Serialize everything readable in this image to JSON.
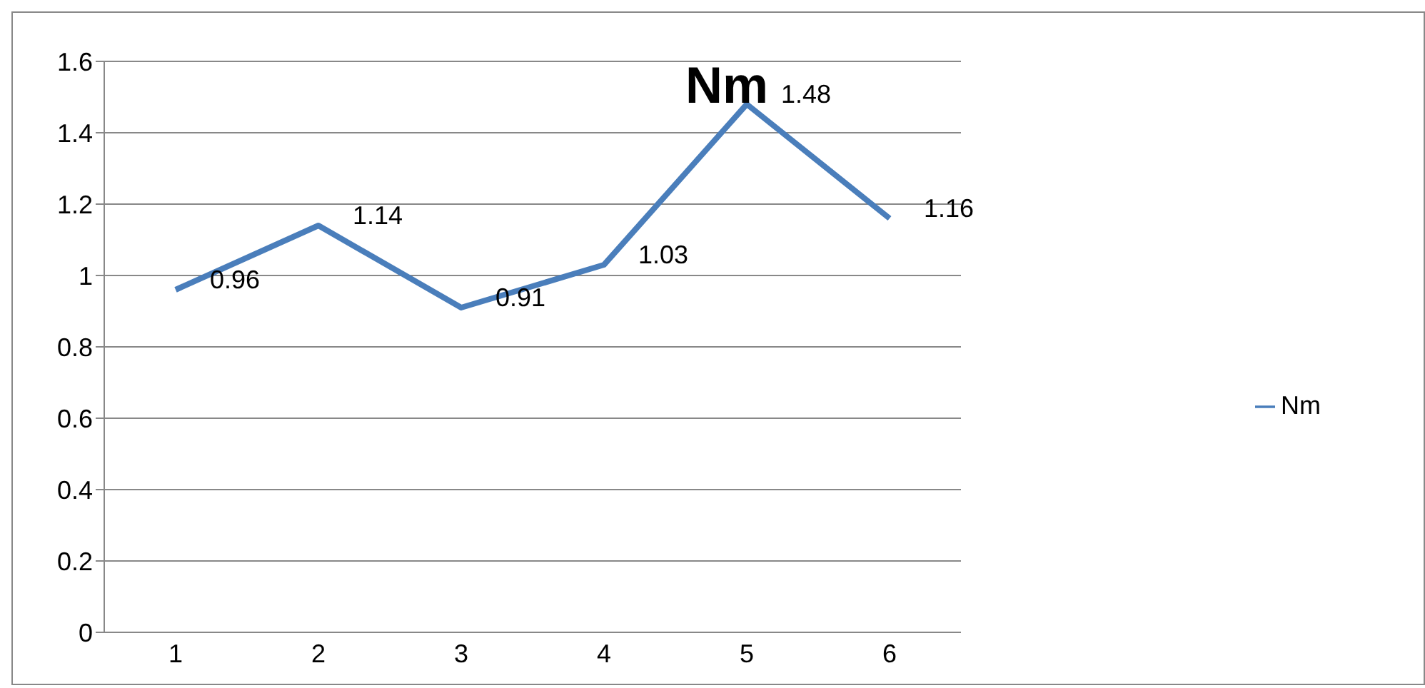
{
  "chart_data": {
    "type": "line",
    "title": "Nm",
    "categories": [
      "1",
      "2",
      "3",
      "4",
      "5",
      "6"
    ],
    "series": [
      {
        "name": "Nm",
        "color": "#4a7ebb",
        "values": [
          0.96,
          1.14,
          0.91,
          1.03,
          1.48,
          1.16
        ]
      }
    ],
    "ylim": [
      0,
      1.6
    ],
    "yticks": [
      0,
      0.2,
      0.4,
      0.6,
      0.8,
      1,
      1.2,
      1.4,
      1.6
    ],
    "grid": "y",
    "legend": "right",
    "marker": "none",
    "line_style": "solid",
    "data_labels": true
  }
}
